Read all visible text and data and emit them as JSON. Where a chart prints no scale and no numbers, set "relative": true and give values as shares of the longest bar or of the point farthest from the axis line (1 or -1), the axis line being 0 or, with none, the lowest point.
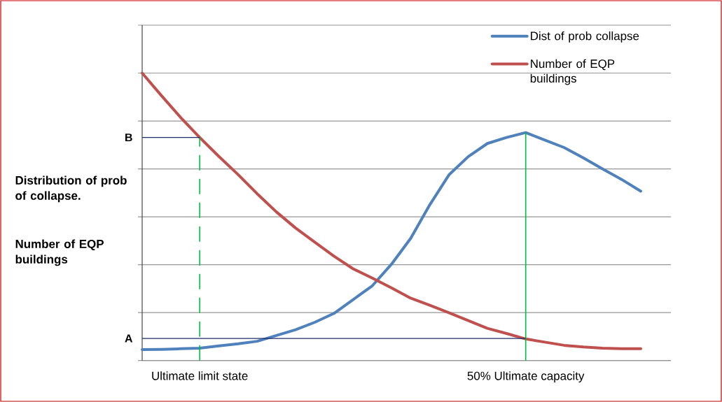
{
  "chart_data": {
    "type": "line",
    "relative": true,
    "grid": "y",
    "legend": "top right",
    "marker": "none",
    "ylabel": "Distribution of prob of collapse.",
    "annotations": [
      "Number of EQP buildings"
    ],
    "categories": [
      null,
      null,
      null,
      "Ultimate limit state",
      null,
      null,
      null,
      null,
      null,
      null,
      null,
      null,
      null,
      null,
      null,
      null,
      null,
      null,
      null,
      null,
      "50% Ultimate capacity",
      null,
      null,
      null,
      null,
      null,
      null
    ],
    "series": [
      {
        "name": "Dist of prob collapse",
        "color": "#4f81bd",
        "values": [
          0.038,
          0.039,
          0.041,
          0.043,
          0.051,
          0.058,
          0.067,
          0.087,
          0.107,
          0.133,
          0.164,
          0.212,
          0.26,
          0.335,
          0.425,
          0.542,
          0.646,
          0.709,
          0.755,
          0.776,
          0.793,
          0.767,
          0.741,
          0.705,
          0.667,
          0.63,
          0.589
        ]
      },
      {
        "name": "Number of EQP buildings",
        "color": "#c0504d",
        "values": [
          1.0,
          0.922,
          0.846,
          0.776,
          0.71,
          0.647,
          0.58,
          0.517,
          0.461,
          0.412,
          0.363,
          0.319,
          0.287,
          0.253,
          0.217,
          0.192,
          0.166,
          0.139,
          0.112,
          0.094,
          0.075,
          0.064,
          0.053,
          0.047,
          0.043,
          0.041,
          0.041
        ]
      }
    ],
    "ref_lines": [
      {
        "axis": "x",
        "value": "Ultimate limit state",
        "color": "#00c040",
        "line_style": "dashed"
      },
      {
        "axis": "x",
        "value": "50% Ultimate capacity",
        "color": "#00c040",
        "line_style": "solid"
      },
      {
        "axis": "y",
        "value": 0.776,
        "label": "B",
        "color": "#1f2d6b"
      },
      {
        "axis": "y",
        "value": 0.077,
        "label": "A",
        "color": "#1f2d6b"
      }
    ]
  }
}
